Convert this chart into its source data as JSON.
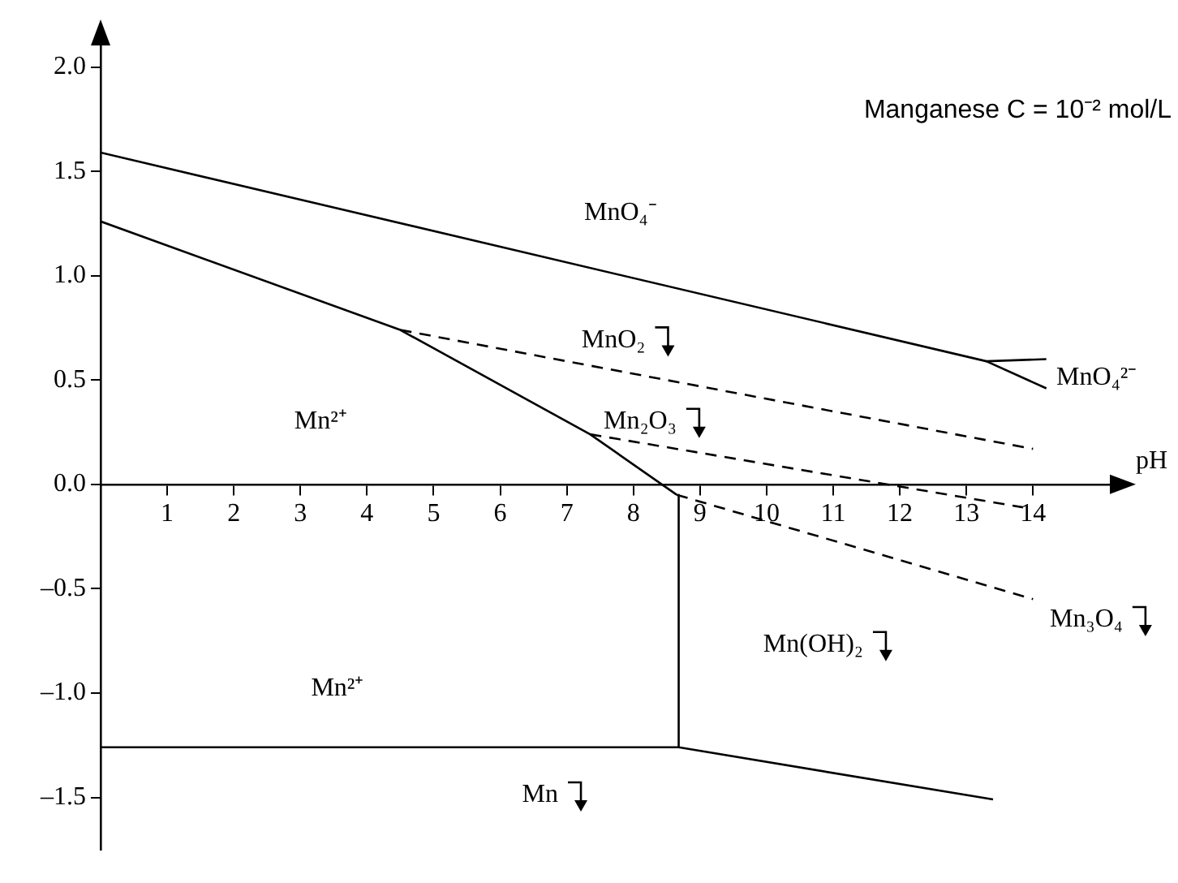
{
  "chart_data": {
    "type": "line",
    "title": "Manganese C = 10⁻² mol/L",
    "xlabel": "pH",
    "xlim": [
      0,
      15.3
    ],
    "ylim": [
      -1.75,
      2.15
    ],
    "xticks": [
      1,
      2,
      3,
      4,
      5,
      6,
      7,
      8,
      9,
      10,
      11,
      12,
      13,
      14
    ],
    "yticks": [
      {
        "value": -1.5,
        "label": "–1.5"
      },
      {
        "value": -1,
        "label": "–1.0"
      },
      {
        "value": -0.5,
        "label": "–0.5"
      },
      {
        "value": 0,
        "label": "0.0"
      },
      {
        "value": 0.5,
        "label": "0.5"
      },
      {
        "value": 1,
        "label": "1.0"
      },
      {
        "value": 1.5,
        "label": "1.5"
      },
      {
        "value": 2,
        "label": "2.0"
      }
    ],
    "grid": false,
    "legend": false,
    "marker": "none",
    "series": [
      {
        "color": "#000000",
        "line_style": "solid",
        "x": [
          0,
          13.3,
          14.2
        ],
        "values": [
          1.59,
          0.59,
          0.6
        ]
      },
      {
        "color": "#000000",
        "line_style": "solid",
        "x": [
          13.3,
          14.2
        ],
        "values": [
          0.59,
          0.46
        ]
      },
      {
        "color": "#000000",
        "line_style": "solid",
        "x": [
          0,
          4.5,
          7.35,
          8.65
        ],
        "values": [
          1.26,
          0.74,
          0.24,
          -0.05
        ]
      },
      {
        "color": "#000000",
        "line_style": "dashed",
        "x": [
          4.5,
          14
        ],
        "values": [
          0.74,
          0.17
        ]
      },
      {
        "color": "#000000",
        "line_style": "dashed",
        "x": [
          7.35,
          13.85
        ],
        "values": [
          0.24,
          -0.11
        ]
      },
      {
        "color": "#000000",
        "line_style": "dashed",
        "x": [
          8.65,
          14
        ],
        "values": [
          -0.05,
          -0.55
        ]
      },
      {
        "color": "#000000",
        "line_style": "solid",
        "x": [
          8.68,
          8.68
        ],
        "values": [
          -0.05,
          -1.26
        ]
      },
      {
        "color": "#000000",
        "line_style": "solid",
        "x": [
          0,
          8.68,
          13.4
        ],
        "values": [
          -1.26,
          -1.26,
          -1.51
        ]
      }
    ],
    "annotations": [
      "MnO₄⁻",
      "MnO₂",
      "Mn₂O₃",
      "Mn²⁺",
      "MnO₄²⁻",
      "Mn₃O₄",
      "Mn(OH)₂",
      "Mn²⁺",
      "Mn"
    ]
  }
}
